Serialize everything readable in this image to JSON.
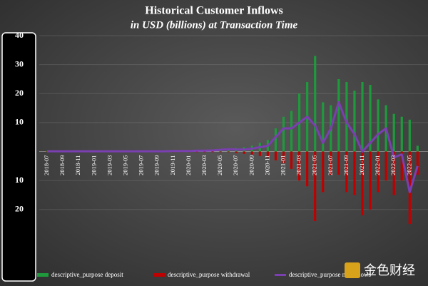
{
  "chart_data": {
    "type": "combo",
    "title": "Historical Customer Inflows",
    "subtitle": "in USD (billions) at Transaction Time",
    "categories": [
      "2018-07",
      null,
      "2018-09",
      null,
      "2018-11",
      null,
      "2019-01",
      null,
      "2019-03",
      null,
      "2019-05",
      null,
      "2019-07",
      null,
      "2019-09",
      null,
      "2019-11",
      null,
      "2020-01",
      null,
      "2020-03",
      null,
      "2020-05",
      null,
      "2020-07",
      null,
      "2020-09",
      null,
      "2020-11",
      null,
      "2021-01",
      null,
      "2021-03",
      null,
      "2021-05",
      null,
      "2021-07",
      null,
      "2021-09",
      null,
      "2021-11",
      null,
      "2022-01",
      null,
      "2022-03",
      null,
      "2022-05",
      null
    ],
    "series": [
      {
        "name": "descriptive_purpose deposit",
        "type": "bar",
        "color": "#1e9a3c",
        "values": [
          0.2,
          0.2,
          0.2,
          0.2,
          0.2,
          0.2,
          0.2,
          0.2,
          0.2,
          0.2,
          0.2,
          0.2,
          0.3,
          0.3,
          0.3,
          0.3,
          0.4,
          0.4,
          0.4,
          0.5,
          0.5,
          0.6,
          0.8,
          1,
          1.2,
          1.5,
          2,
          3,
          4,
          8,
          12,
          14,
          20,
          24,
          33,
          17,
          16,
          25,
          24,
          21,
          24,
          23,
          18,
          16,
          13,
          12,
          11,
          2
        ]
      },
      {
        "name": "descriptive_purpose withdrawal",
        "type": "bar",
        "color": "#c00000",
        "values": [
          -0.1,
          -0.1,
          -0.1,
          -0.1,
          -0.1,
          -0.1,
          -0.1,
          -0.1,
          -0.1,
          -0.1,
          -0.1,
          -0.1,
          -0.2,
          -0.2,
          -0.2,
          -0.2,
          -0.2,
          -0.2,
          -0.2,
          -0.2,
          -0.2,
          -0.2,
          -0.2,
          -0.2,
          -0.5,
          -0.8,
          -1,
          -1.5,
          -2,
          -3,
          -4,
          -6,
          -10,
          -12,
          -24,
          -14,
          -8,
          -8,
          -14,
          -15,
          -22,
          -20,
          -14,
          -10,
          -15,
          -10,
          -25,
          -8
        ]
      },
      {
        "name": "descriptive_purpose net inflows",
        "type": "line",
        "color": "#7a3fb0",
        "values": [
          0.1,
          0.1,
          0.1,
          0.1,
          0.1,
          0.1,
          0.1,
          0.1,
          0.1,
          0.1,
          0.1,
          0.1,
          0.1,
          0.1,
          0.1,
          0.1,
          0.2,
          0.2,
          0.2,
          0.3,
          0.3,
          0.4,
          0.6,
          0.8,
          0.7,
          0.7,
          1,
          1.5,
          2,
          5,
          8,
          8,
          10,
          12,
          9,
          3,
          8,
          17,
          10,
          6,
          0,
          3,
          6,
          8,
          -2,
          -1,
          -14,
          -5
        ]
      }
    ],
    "ylim": [
      -40,
      40
    ],
    "yticks": [
      40,
      30,
      20,
      10,
      {
        "value": -10,
        "label": "10"
      },
      {
        "value": -20,
        "label": "20"
      }
    ],
    "grid": true
  },
  "watermark": "金色财经"
}
